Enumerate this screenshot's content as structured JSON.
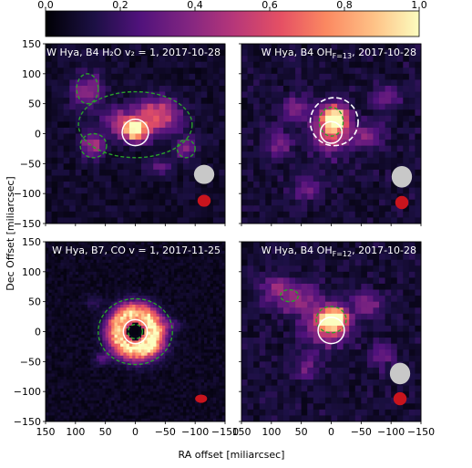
{
  "chart_data": {
    "type": "heatmap",
    "xlabel": "RA offset [miliarcsec]",
    "ylabel": "Dec Offset [miliarcsec]",
    "xlim": [
      150,
      -150
    ],
    "ylim": [
      -150,
      150
    ],
    "colorbar": {
      "range": [
        0.0,
        1.0
      ],
      "ticks": [
        "0.0",
        "0.2",
        "0.4",
        "0.6",
        "0.8",
        "1.0"
      ],
      "colormap": "magma"
    },
    "x_ticks": [
      "150",
      "100",
      "50",
      "0",
      "−50",
      "−100",
      "−150"
    ],
    "y_ticks": [
      "150",
      "100",
      "50",
      "0",
      "−50",
      "−100",
      "−150"
    ],
    "x_tick_values": [
      150,
      100,
      50,
      0,
      -50,
      -100,
      -150
    ],
    "y_tick_values": [
      150,
      100,
      50,
      0,
      -50,
      -100,
      -150
    ],
    "panels": [
      {
        "title": "W Hya, B4 H₂O v₂ = 1, 2017-10-28",
        "grid": 30,
        "background": 0.08,
        "blobs": [
          {
            "x": 0,
            "y": 5,
            "sx": 14,
            "sy": 12,
            "amp": 0.92
          },
          {
            "x": -35,
            "y": 30,
            "sx": 28,
            "sy": 20,
            "amp": 0.55
          },
          {
            "x": 70,
            "y": -20,
            "sx": 14,
            "sy": 14,
            "amp": 0.4
          },
          {
            "x": 80,
            "y": 70,
            "sx": 18,
            "sy": 22,
            "amp": 0.32
          },
          {
            "x": -85,
            "y": -25,
            "sx": 12,
            "sy": 12,
            "amp": 0.3
          },
          {
            "x": 30,
            "y": 20,
            "sx": 18,
            "sy": 14,
            "amp": 0.35
          },
          {
            "x": -40,
            "y": -55,
            "sx": 14,
            "sy": 10,
            "amp": 0.22
          }
        ],
        "contours": [
          {
            "x": 0,
            "y": 15,
            "rx": 95,
            "ry": 55
          },
          {
            "x": 70,
            "y": -20,
            "rx": 22,
            "ry": 20
          },
          {
            "x": 80,
            "y": 75,
            "rx": 18,
            "ry": 25
          },
          {
            "x": -85,
            "y": -25,
            "rx": 15,
            "ry": 15
          }
        ],
        "stellar_disk": {
          "x": 0,
          "y": 2,
          "r": 22
        },
        "extra_ring": null,
        "beams": [
          {
            "x": -115,
            "y": -68,
            "rx": 17,
            "ry": 16,
            "color": "#c8c8c8"
          },
          {
            "x": -115,
            "y": -112,
            "rx": 11,
            "ry": 10,
            "color": "#c8141d"
          }
        ]
      },
      {
        "title": "W Hya, B4 OH_F=13, 2017-10-28",
        "grid": 30,
        "background": 0.1,
        "blobs": [
          {
            "x": -5,
            "y": 25,
            "sx": 13,
            "sy": 13,
            "amp": 0.95
          },
          {
            "x": 0,
            "y": 5,
            "sx": 22,
            "sy": 26,
            "amp": 0.5
          },
          {
            "x": 60,
            "y": 40,
            "sx": 15,
            "sy": 15,
            "amp": 0.32
          },
          {
            "x": -60,
            "y": -5,
            "sx": 18,
            "sy": 14,
            "amp": 0.3
          },
          {
            "x": 90,
            "y": -20,
            "sx": 14,
            "sy": 14,
            "amp": 0.28
          },
          {
            "x": -90,
            "y": 60,
            "sx": 16,
            "sy": 14,
            "amp": 0.24
          },
          {
            "x": 40,
            "y": -95,
            "sx": 18,
            "sy": 12,
            "amp": 0.22
          }
        ],
        "contours": [
          {
            "x": 0,
            "y": 20,
            "rx": 20,
            "ry": 24
          }
        ],
        "stellar_disk": {
          "x": 0,
          "y": 2,
          "r": 18
        },
        "extra_ring": {
          "x": -5,
          "y": 20,
          "r": 40
        },
        "beams": [
          {
            "x": -118,
            "y": -72,
            "rx": 17,
            "ry": 18,
            "color": "#c8c8c8"
          },
          {
            "x": -118,
            "y": -115,
            "rx": 11,
            "ry": 11,
            "color": "#c8141d"
          }
        ]
      },
      {
        "title": "W Hya, B7, CO v = 1, 2017-11-25",
        "grid": 60,
        "background": 0.06,
        "ring": {
          "x": 0,
          "y": 0,
          "r": 30,
          "width": 14,
          "amp": 0.85,
          "hot": {
            "x": -25,
            "y": -20,
            "amp": 0.2
          }
        },
        "blobs": [
          {
            "x": 55,
            "y": -45,
            "sx": 10,
            "sy": 8,
            "amp": 0.18
          },
          {
            "x": -60,
            "y": 10,
            "sx": 12,
            "sy": 8,
            "amp": 0.16
          },
          {
            "x": 70,
            "y": 50,
            "sx": 10,
            "sy": 8,
            "amp": 0.12
          }
        ],
        "contours": [
          {
            "x": 0,
            "y": 0,
            "rx": 62,
            "ry": 55
          },
          {
            "x": 0,
            "y": 0,
            "rx": 12,
            "ry": 12
          }
        ],
        "stellar_disk": {
          "x": 0,
          "y": 0,
          "r": 20
        },
        "extra_ring": null,
        "beams": [
          {
            "x": -110,
            "y": -112,
            "rx": 10,
            "ry": 7,
            "color": "#c8141d"
          }
        ]
      },
      {
        "title": "W Hya, B4 OH_F=12, 2017-10-28",
        "grid": 30,
        "background": 0.1,
        "blobs": [
          {
            "x": -5,
            "y": 20,
            "sx": 14,
            "sy": 13,
            "amp": 0.9
          },
          {
            "x": 10,
            "y": 10,
            "sx": 26,
            "sy": 24,
            "amp": 0.45
          },
          {
            "x": 60,
            "y": 55,
            "sx": 28,
            "sy": 16,
            "amp": 0.35
          },
          {
            "x": -60,
            "y": 45,
            "sx": 16,
            "sy": 14,
            "amp": 0.3
          },
          {
            "x": 95,
            "y": 80,
            "sx": 14,
            "sy": 12,
            "amp": 0.25
          },
          {
            "x": -85,
            "y": -40,
            "sx": 14,
            "sy": 14,
            "amp": 0.22
          },
          {
            "x": 40,
            "y": -60,
            "sx": 16,
            "sy": 14,
            "amp": 0.2
          }
        ],
        "contours": [
          {
            "x": 0,
            "y": 20,
            "rx": 25,
            "ry": 22
          },
          {
            "x": 70,
            "y": 60,
            "rx": 15,
            "ry": 10
          }
        ],
        "stellar_disk": {
          "x": 0,
          "y": 2,
          "r": 22
        },
        "extra_ring": null,
        "beams": [
          {
            "x": -115,
            "y": -70,
            "rx": 17,
            "ry": 18,
            "color": "#c8c8c8"
          },
          {
            "x": -115,
            "y": -112,
            "rx": 11,
            "ry": 11,
            "color": "#c8141d"
          }
        ]
      }
    ]
  }
}
